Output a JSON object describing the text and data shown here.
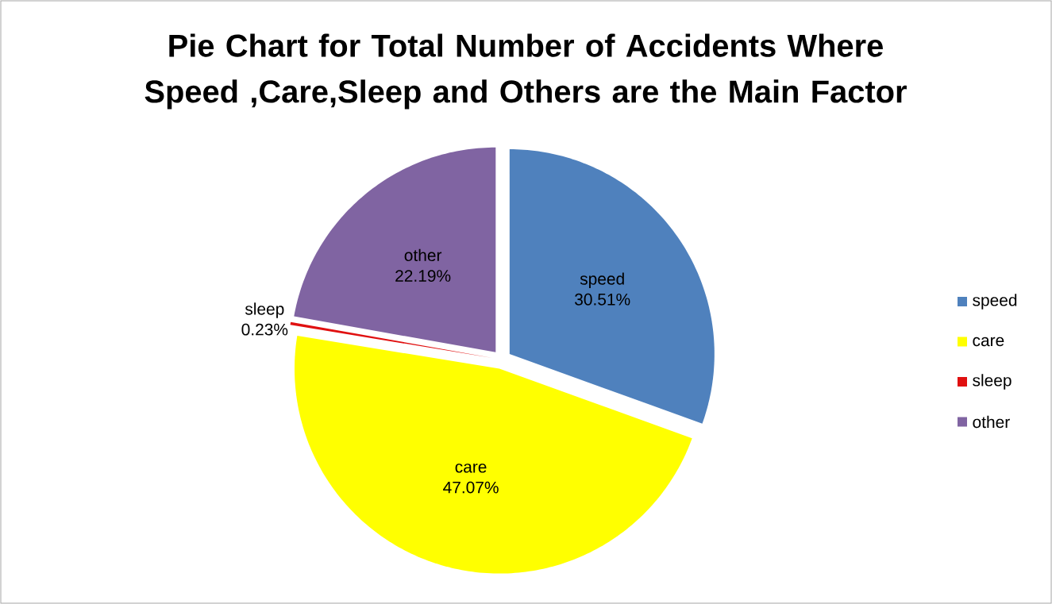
{
  "chart_data": {
    "type": "pie",
    "title": "Pie Chart for Total Number of Accidents Where Speed ,Care,Sleep and Others are the Main Factor",
    "categories": [
      "speed",
      "care",
      "sleep",
      "other"
    ],
    "values": [
      30.51,
      47.07,
      0.23,
      22.19
    ],
    "colors": [
      "#4f81bd",
      "#ffff00",
      "#e01010",
      "#8064a2"
    ],
    "value_labels": [
      "30.51%",
      "47.07%",
      "0.23%",
      "22.19%"
    ],
    "legend": "right"
  }
}
